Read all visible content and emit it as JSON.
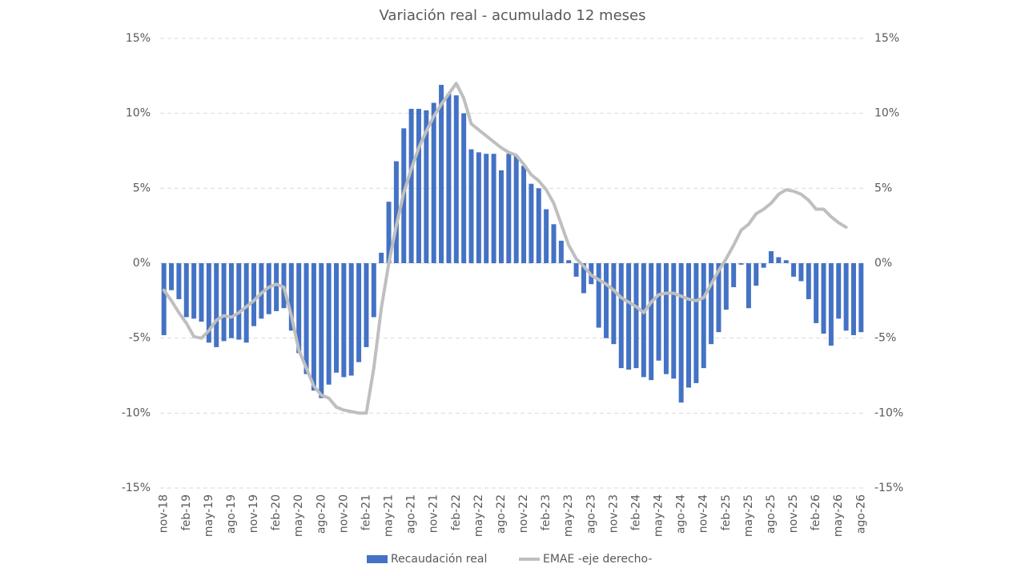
{
  "chart_data": {
    "type": "bar_line",
    "title": "Variación real - acumulado 12 meses",
    "categories": [
      "nov-18",
      null,
      null,
      "feb-19",
      null,
      null,
      "may-19",
      null,
      null,
      "ago-19",
      null,
      null,
      "nov-19",
      null,
      null,
      "feb-20",
      null,
      null,
      "may-20",
      null,
      null,
      "ago-20",
      null,
      null,
      "nov-20",
      null,
      null,
      "feb-21",
      null,
      null,
      "may-21",
      null,
      null,
      "ago-21",
      null,
      null,
      "nov-21",
      null,
      null,
      "feb-22",
      null,
      null,
      "may-22",
      null,
      null,
      "ago-22",
      null,
      null,
      "nov-22",
      null,
      null,
      "feb-23",
      null,
      null,
      "may-23",
      null,
      null,
      "ago-23",
      null,
      null,
      "nov-23",
      null,
      null,
      "feb-24",
      null,
      null,
      "may-24",
      null,
      null,
      "ago-24",
      null,
      null,
      "nov-24",
      null,
      null,
      "feb-25",
      null,
      null,
      "may-25",
      null,
      null,
      "ago-25",
      null,
      null,
      "nov-25",
      null,
      null,
      "feb-26",
      null,
      null,
      "may-26",
      null,
      null,
      "ago-26"
    ],
    "series": [
      {
        "name": "Recaudación real",
        "type": "bar",
        "color": "#4472c4",
        "values": [
          -4.8,
          -1.8,
          -2.4,
          -3.6,
          -3.7,
          -3.9,
          -5.3,
          -5.6,
          -5.2,
          -5.0,
          -5.1,
          -5.3,
          -4.2,
          -3.7,
          -3.4,
          -3.2,
          -3.0,
          -4.5,
          -6.0,
          -7.4,
          -8.5,
          -9.0,
          -8.1,
          -7.3,
          -7.6,
          -7.5,
          -6.6,
          -5.6,
          -3.6,
          0.7,
          4.1,
          6.8,
          9.0,
          10.3,
          10.3,
          10.2,
          10.7,
          11.9,
          11.3,
          11.2,
          10.0,
          7.6,
          7.4,
          7.3,
          7.3,
          6.2,
          7.3,
          7.2,
          6.5,
          5.3,
          5.0,
          3.6,
          2.6,
          1.5,
          0.2,
          -0.9,
          -2.0,
          -1.4,
          -4.3,
          -5.0,
          -5.4,
          -7.0,
          -7.1,
          -7.0,
          -7.6,
          -7.8,
          -6.5,
          -7.4,
          -7.7,
          -9.3,
          -8.3,
          -8.0,
          -7.0,
          -5.4,
          -4.6,
          -3.1,
          -1.6,
          -0.1,
          -3.0,
          -1.5,
          -0.3,
          0.8,
          0.4,
          0.2,
          -0.9,
          -1.2,
          -2.4,
          -4.0,
          -4.7,
          -5.5,
          -3.7,
          -4.5,
          -4.8,
          -4.6
        ]
      },
      {
        "name": "EMAE -eje derecho-",
        "type": "line",
        "axis": "y2",
        "color": "#bfbfbf",
        "values": [
          -1.8,
          -2.5,
          -3.3,
          -4.0,
          -4.9,
          -5.0,
          -4.5,
          -3.8,
          -3.5,
          -3.6,
          -3.3,
          -2.9,
          -2.5,
          -2.0,
          -1.6,
          -1.4,
          -1.6,
          -3.5,
          -5.8,
          -7.0,
          -8.2,
          -8.8,
          -9.0,
          -9.6,
          -9.8,
          -9.9,
          -10.0,
          -10.0,
          -7.0,
          -3.0,
          0.0,
          2.5,
          4.7,
          6.3,
          7.7,
          8.8,
          9.8,
          10.6,
          11.3,
          12.0,
          11.0,
          9.3,
          8.9,
          8.5,
          8.1,
          7.7,
          7.4,
          7.2,
          6.6,
          5.9,
          5.5,
          4.9,
          4.0,
          2.6,
          1.2,
          0.3,
          -0.2,
          -0.8,
          -1.1,
          -1.4,
          -1.8,
          -2.3,
          -2.6,
          -2.9,
          -3.3,
          -2.6,
          -2.1,
          -2.0,
          -2.0,
          -2.2,
          -2.4,
          -2.5,
          -2.3,
          -1.4,
          -0.5,
          0.3,
          1.2,
          2.2,
          2.6,
          3.3,
          3.6,
          4.0,
          4.6,
          4.9,
          4.8,
          4.6,
          4.2,
          3.6,
          3.6,
          3.1,
          2.7,
          2.4,
          null,
          null
        ]
      }
    ],
    "ylim": [
      -15,
      15
    ],
    "yticks": [
      {
        "value": -15,
        "label": "-15%"
      },
      {
        "value": -10,
        "label": "-10%"
      },
      {
        "value": -5,
        "label": "-5%"
      },
      {
        "value": 0,
        "label": "0%"
      },
      {
        "value": 5,
        "label": "5%"
      },
      {
        "value": 10,
        "label": "10%"
      },
      {
        "value": 15,
        "label": "15%"
      }
    ],
    "y2lim": [
      -15,
      15
    ],
    "y2ticks": [
      {
        "value": -15,
        "label": "-15%"
      },
      {
        "value": -10,
        "label": "-10%"
      },
      {
        "value": -5,
        "label": "-5%"
      },
      {
        "value": 0,
        "label": "0%"
      },
      {
        "value": 5,
        "label": "5%"
      },
      {
        "value": 10,
        "label": "10%"
      },
      {
        "value": 15,
        "label": "15%"
      }
    ],
    "grid": true,
    "legend": "bottom"
  }
}
